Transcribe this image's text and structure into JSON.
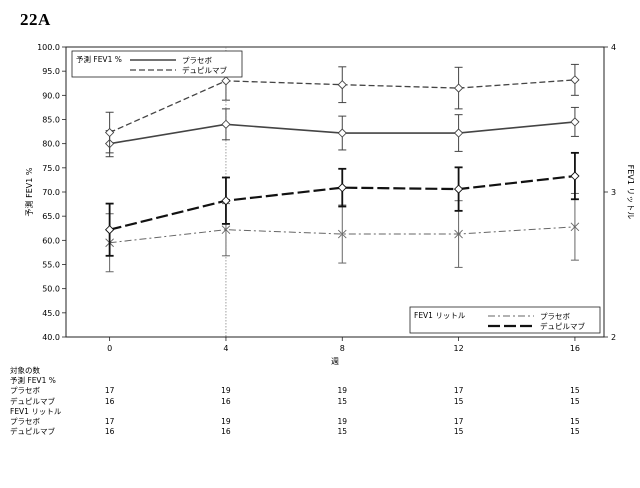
{
  "figure_label": "22A",
  "chart_data": {
    "type": "line",
    "x": [
      0,
      4,
      8,
      12,
      16
    ],
    "xlabel": "週",
    "xlim": [
      -1.5,
      17
    ],
    "ylabel_left": "予測 FEV1 %",
    "ylabel_right": "FEV1 リットル",
    "ylim_left": [
      40,
      100
    ],
    "ylim_right": [
      2,
      4
    ],
    "yticks_left": [
      40,
      45,
      50,
      55,
      60,
      65,
      70,
      75,
      80,
      85,
      90,
      95,
      100
    ],
    "yticks_right": [
      2,
      3,
      4
    ],
    "reference_line_x": 4,
    "legend_top": {
      "title": "予測 FEV1 %",
      "placement": "top-left",
      "entries": [
        "プラセボ",
        "デュピルマブ"
      ]
    },
    "legend_bottom": {
      "title": "FEV1 リットル",
      "placement": "bottom-right",
      "entries": [
        "プラセボ",
        "デュピルマブ"
      ]
    },
    "series": [
      {
        "name": "プラセボ",
        "group": "予測 FEV1 %",
        "axis": "left",
        "style": "solid",
        "color": "#444444",
        "values": [
          80,
          84,
          82.2,
          82.2,
          84.5
        ],
        "err": [
          2.7,
          3.2,
          3.5,
          3.8,
          3.0
        ]
      },
      {
        "name": "デュピルマブ",
        "group": "予測 FEV1 %",
        "axis": "left",
        "style": "short-dash",
        "color": "#444444",
        "values": [
          82.3,
          93,
          92.2,
          91.5,
          93.2
        ],
        "err": [
          4.2,
          4.0,
          3.7,
          4.3,
          3.2
        ]
      },
      {
        "name": "プラセボ",
        "group": "FEV1 リットル",
        "axis": "right",
        "style": "dash-dot",
        "color": "#666666",
        "values": [
          2.65,
          2.74,
          2.71,
          2.71,
          2.76
        ],
        "err": [
          0.2,
          0.18,
          0.2,
          0.23,
          0.23
        ]
      },
      {
        "name": "デュピルマブ",
        "group": "FEV1 リットル",
        "axis": "right",
        "style": "long-dash",
        "color": "#111111",
        "values": [
          2.74,
          2.94,
          3.03,
          3.02,
          3.11
        ],
        "err": [
          0.18,
          0.16,
          0.13,
          0.15,
          0.16
        ]
      }
    ]
  },
  "table": {
    "title": "対象の数",
    "groups": [
      {
        "name": "予測 FEV1 %",
        "rows": [
          {
            "label": "プラセボ",
            "values": [
              "17",
              "19",
              "19",
              "17",
              "15"
            ]
          },
          {
            "label": "デュピルマブ",
            "values": [
              "16",
              "16",
              "15",
              "15",
              "15"
            ]
          }
        ]
      },
      {
        "name": "FEV1 リットル",
        "rows": [
          {
            "label": "プラセボ",
            "values": [
              "17",
              "19",
              "19",
              "17",
              "15"
            ]
          },
          {
            "label": "デュピルマブ",
            "values": [
              "16",
              "16",
              "15",
              "15",
              "15"
            ]
          }
        ]
      }
    ]
  }
}
